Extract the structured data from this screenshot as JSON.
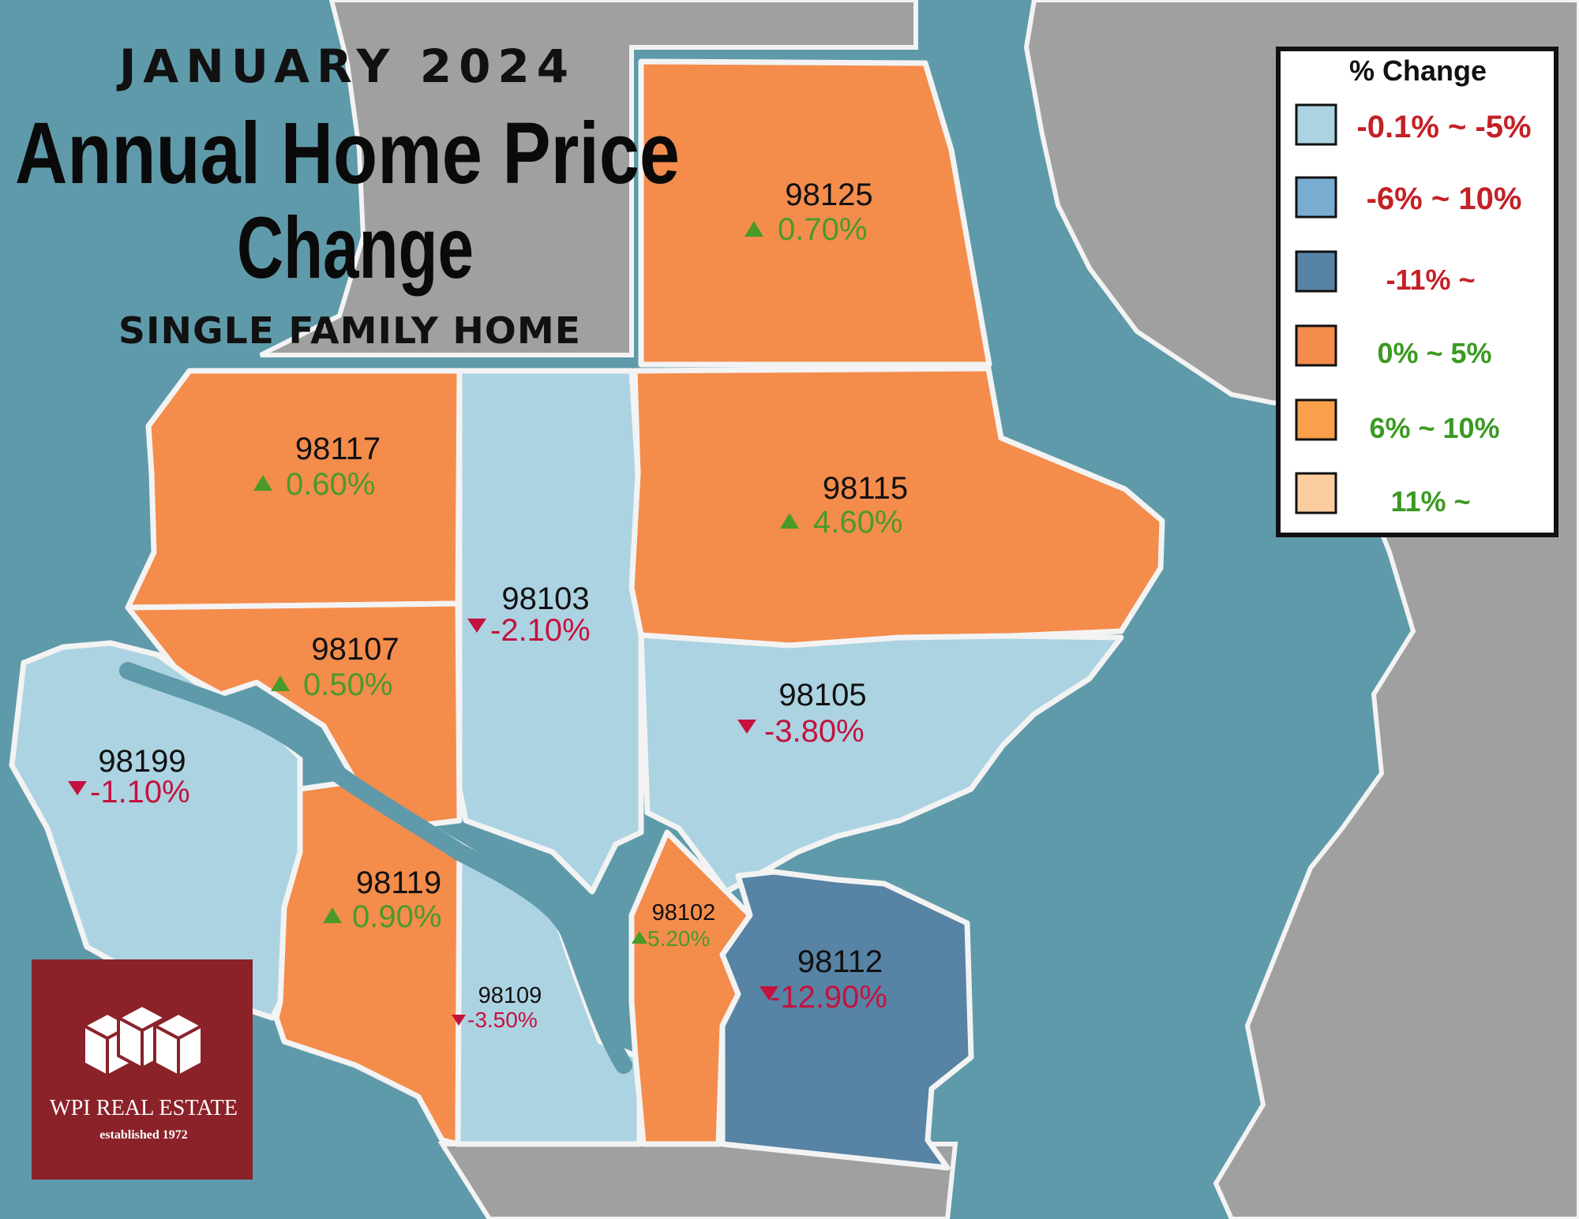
{
  "header": {
    "month": "JANUARY 2024",
    "title_line1": "Annual Home Price",
    "title_line2": "Change",
    "subtitle": "SINGLE FAMILY HOME"
  },
  "legend": {
    "title": "% Change",
    "items": [
      {
        "label": "-0.1% ~ -5%",
        "color": "#acd3e2"
      },
      {
        "label": "-6% ~ 10%",
        "color": "#78acd1"
      },
      {
        "label": "-11% ~",
        "color": "#5783a5"
      },
      {
        "label": "0% ~ 5%",
        "color": "#f48c4c"
      },
      {
        "label": "6% ~ 10%",
        "color": "#f8a04a"
      },
      {
        "label": "11% ~",
        "color": "#fbcd9e"
      }
    ]
  },
  "colors": {
    "water": "#5f9aaa",
    "land": "#a0a0a0",
    "border": "#f3f3f3",
    "up": "#4a9a2a",
    "down": "#c4123e",
    "logo_bg": "#8b2229"
  },
  "zip_areas": [
    {
      "zip": "98125",
      "change": "0.70%",
      "direction": "up",
      "color": "#f48c4c"
    },
    {
      "zip": "98117",
      "change": "0.60%",
      "direction": "up",
      "color": "#f48c4c"
    },
    {
      "zip": "98115",
      "change": "4.60%",
      "direction": "up",
      "color": "#f48c4c"
    },
    {
      "zip": "98103",
      "change": "-2.10%",
      "direction": "down",
      "color": "#acd3e2"
    },
    {
      "zip": "98107",
      "change": "0.50%",
      "direction": "up",
      "color": "#f48c4c"
    },
    {
      "zip": "98105",
      "change": "-3.80%",
      "direction": "down",
      "color": "#acd3e2"
    },
    {
      "zip": "98199",
      "change": "-1.10%",
      "direction": "down",
      "color": "#acd3e2"
    },
    {
      "zip": "98119",
      "change": "0.90%",
      "direction": "up",
      "color": "#f48c4c"
    },
    {
      "zip": "98102",
      "change": "5.20%",
      "direction": "up",
      "color": "#f48c4c"
    },
    {
      "zip": "98112",
      "change": "-12.90%",
      "direction": "down",
      "color": "#5783a5"
    },
    {
      "zip": "98109",
      "change": "-3.50%",
      "direction": "down",
      "color": "#acd3e2"
    }
  ],
  "logo": {
    "name": "WPI REAL ESTATE",
    "tagline": "established 1972"
  }
}
